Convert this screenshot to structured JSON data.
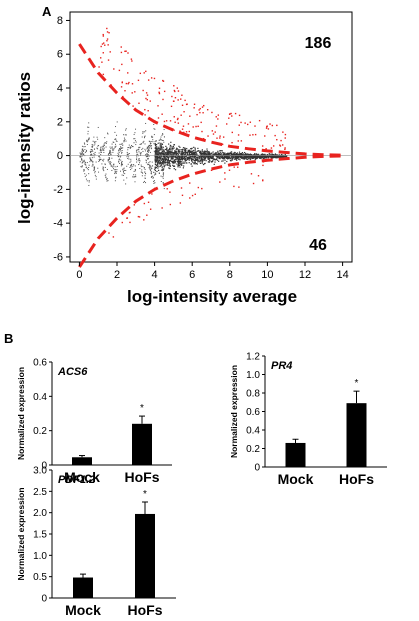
{
  "panels": {
    "a_label": "A",
    "b_label": "B"
  },
  "chart_data": [
    {
      "type": "scatter",
      "xlabel": "log-intensity average",
      "ylabel": "log-intensity ratios",
      "xlim": [
        -0.5,
        14.5
      ],
      "ylim": [
        -6.3,
        8.5
      ],
      "xticks": [
        "0",
        "2",
        "4",
        "6",
        "8",
        "10",
        "12",
        "14"
      ],
      "yticks": [
        "-6",
        "-4",
        "-2",
        "0",
        "2",
        "4",
        "6",
        "8"
      ],
      "annotations": {
        "up_count": "186",
        "down_count": "46"
      },
      "threshold_curve": {
        "color": "#e8231f",
        "x": [
          0,
          1,
          2,
          3,
          4,
          5,
          6,
          7,
          8,
          9,
          10,
          11,
          12,
          13,
          14
        ],
        "y": [
          6.6,
          4.9,
          3.7,
          2.7,
          2.0,
          1.5,
          1.1,
          0.8,
          0.55,
          0.4,
          0.28,
          0.18,
          0.1,
          0.05,
          0.02
        ]
      },
      "points_color_significant": "#e8231f",
      "points_color_other": "#333333",
      "grid": false
    },
    {
      "type": "bar",
      "gene": "ACS6",
      "ylabel": "Normalized expression",
      "categories": [
        "Mock",
        "HoFs"
      ],
      "values": [
        0.045,
        0.24
      ],
      "errors": [
        0.01,
        0.045
      ],
      "significance": [
        "",
        "*"
      ],
      "ylim": [
        0,
        0.6
      ],
      "yticks": [
        "0",
        "0.2",
        "0.4",
        "0.6"
      ]
    },
    {
      "type": "bar",
      "gene": "PR4",
      "ylabel": "Normalized expression",
      "categories": [
        "Mock",
        "HoFs"
      ],
      "values": [
        0.26,
        0.69
      ],
      "errors": [
        0.04,
        0.13
      ],
      "significance": [
        "",
        "*"
      ],
      "ylim": [
        0,
        1.2
      ],
      "yticks": [
        "0",
        "0.2",
        "0.4",
        "0.6",
        "0.8",
        "1.0",
        "1.2"
      ]
    },
    {
      "type": "bar",
      "gene": "PDF1.2",
      "ylabel": "Normalized expression",
      "categories": [
        "Mock",
        "HoFs"
      ],
      "values": [
        0.48,
        1.97
      ],
      "errors": [
        0.08,
        0.28
      ],
      "significance": [
        "",
        "*"
      ],
      "ylim": [
        0,
        3.0
      ],
      "yticks": [
        "0",
        "0.5",
        "1.0",
        "1.5",
        "2.0",
        "2.5",
        "3.0"
      ]
    }
  ]
}
